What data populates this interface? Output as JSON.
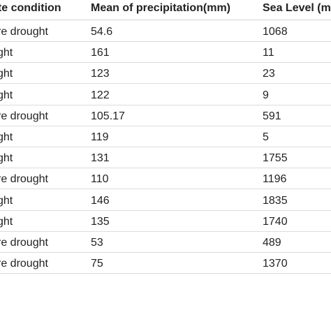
{
  "table": {
    "headers": [
      "ate condition",
      "Mean of precipitation(mm)",
      "Sea Level (m"
    ],
    "rows": [
      [
        "re drought",
        "54.6",
        "1068"
      ],
      [
        "ght",
        "161",
        "11"
      ],
      [
        "ght",
        "123",
        "23"
      ],
      [
        "ght",
        "122",
        "9"
      ],
      [
        "re drought",
        "105.17",
        "591"
      ],
      [
        "ght",
        "119",
        "5"
      ],
      [
        "ght",
        "131",
        "1755"
      ],
      [
        "re drought",
        "110",
        "1196"
      ],
      [
        "ght",
        "146",
        "1835"
      ],
      [
        "ght",
        "135",
        "1740"
      ],
      [
        "re drought",
        "53",
        "489"
      ],
      [
        "re drought",
        "75",
        "1370"
      ]
    ]
  }
}
